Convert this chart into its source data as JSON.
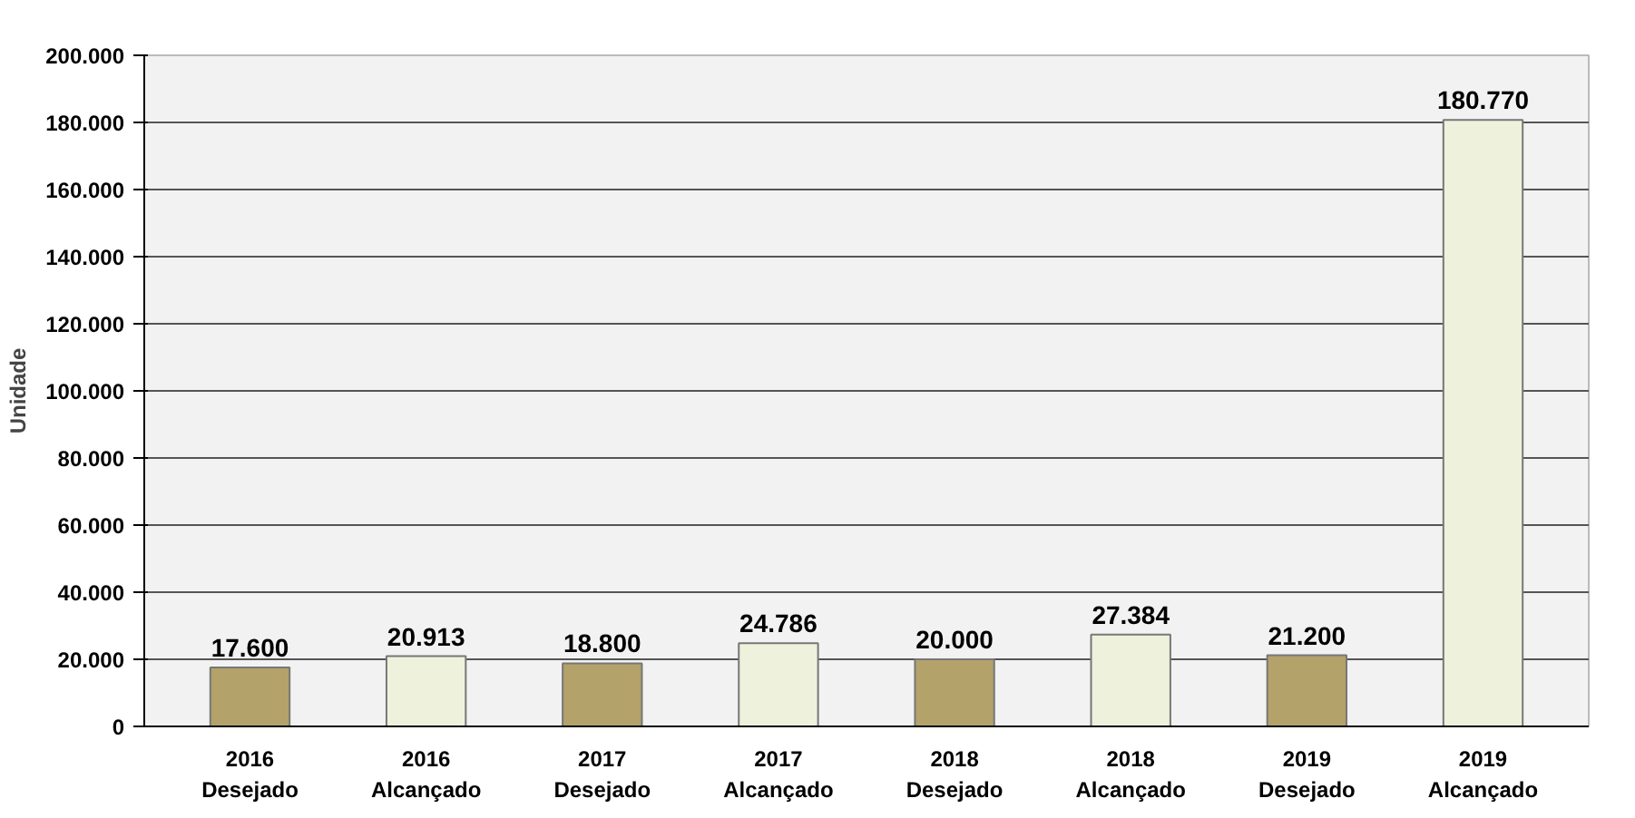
{
  "chart_data": {
    "type": "bar",
    "ylabel": "Unidade",
    "categories": [
      "2016\nDesejado",
      "2016\nAlcançado",
      "2017\nDesejado",
      "2017\nAlcançado",
      "2018\nDesejado",
      "2018\nAlcançado",
      "2019\nDesejado",
      "2019\nAlcançado"
    ],
    "values": [
      17600,
      20913,
      18800,
      24786,
      20000,
      27384,
      21200,
      180770
    ],
    "colors": [
      "#b3a26a",
      "#eef2dc",
      "#b3a26a",
      "#eef2dc",
      "#b3a26a",
      "#eef2dc",
      "#b3a26a",
      "#eef2dc"
    ],
    "value_labels": [
      "17.600",
      "20.913",
      "18.800",
      "24.786",
      "20.000",
      "27.384",
      "21.200",
      "180.770"
    ],
    "ylim": [
      0,
      200000
    ],
    "yticks": [
      {
        "value": 0,
        "label": "0"
      },
      {
        "value": 20000,
        "label": "20.000"
      },
      {
        "value": 40000,
        "label": "40.000"
      },
      {
        "value": 60000,
        "label": "60.000"
      },
      {
        "value": 80000,
        "label": "80.000"
      },
      {
        "value": 100000,
        "label": "100.000"
      },
      {
        "value": 120000,
        "label": "120.000"
      },
      {
        "value": 140000,
        "label": "140.000"
      },
      {
        "value": 160000,
        "label": "160.000"
      },
      {
        "value": 180000,
        "label": "180.000"
      },
      {
        "value": 200000,
        "label": "200.000"
      }
    ],
    "grid": "y"
  }
}
